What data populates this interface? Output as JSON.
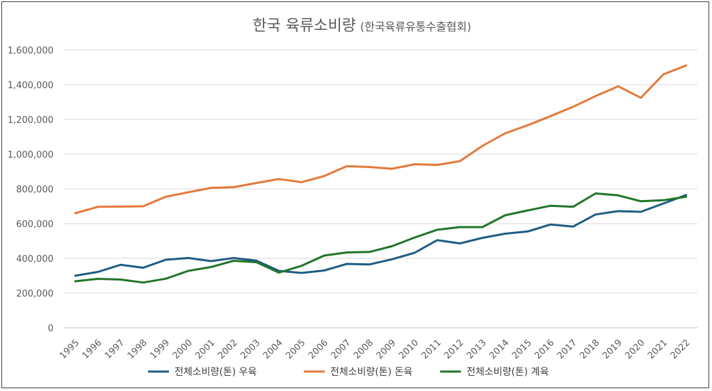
{
  "chart_data": {
    "type": "line",
    "title": "한국 육류소비량",
    "subtitle": "(한국육류유통수출협회)",
    "xlabel": "",
    "ylabel": "",
    "ylim": [
      0,
      1600000
    ],
    "yticks": [
      0,
      200000,
      400000,
      600000,
      800000,
      1000000,
      1200000,
      1400000,
      1600000
    ],
    "ytick_labels": [
      "0",
      "200,000",
      "400,000",
      "600,000",
      "800,000",
      "1,000,000",
      "1,200,000",
      "1,400,000",
      "1,600,000"
    ],
    "grid": true,
    "legend": "bottom",
    "categories": [
      "1995",
      "1996",
      "1997",
      "1998",
      "1999",
      "2000",
      "2001",
      "2002",
      "2003",
      "2004",
      "2005",
      "2006",
      "2007",
      "2008",
      "2009",
      "2010",
      "2011",
      "2012",
      "2013",
      "2014",
      "2015",
      "2016",
      "2017",
      "2018",
      "2019",
      "2020",
      "2021",
      "2022"
    ],
    "series": [
      {
        "name": "전체소비량(톤) 우육",
        "color": "#1f5c84",
        "values": [
          300000,
          322000,
          363000,
          346000,
          392000,
          402000,
          384000,
          402000,
          387000,
          328000,
          316000,
          330000,
          368000,
          365000,
          395000,
          432000,
          505000,
          486000,
          518000,
          542000,
          555000,
          595000,
          583000,
          653000,
          672000,
          668000,
          716000,
          765000
        ]
      },
      {
        "name": "전체소비량(톤) 돈육",
        "color": "#e4793a",
        "values": [
          660000,
          697000,
          698000,
          700000,
          755000,
          781000,
          806000,
          810000,
          834000,
          857000,
          839000,
          874000,
          931000,
          926000,
          916000,
          942000,
          938000,
          960000,
          1048000,
          1120000,
          1167000,
          1219000,
          1273000,
          1335000,
          1391000,
          1325000,
          1460000,
          1511000
        ]
      },
      {
        "name": "전체소비량(톤) 계육",
        "color": "#217528",
        "values": [
          268000,
          282000,
          278000,
          261000,
          283000,
          328000,
          350000,
          386000,
          378000,
          318000,
          357000,
          416000,
          434000,
          437000,
          470000,
          520000,
          565000,
          580000,
          580000,
          648000,
          676000,
          703000,
          697000,
          774000,
          763000,
          729000,
          735000,
          755000
        ]
      }
    ]
  }
}
